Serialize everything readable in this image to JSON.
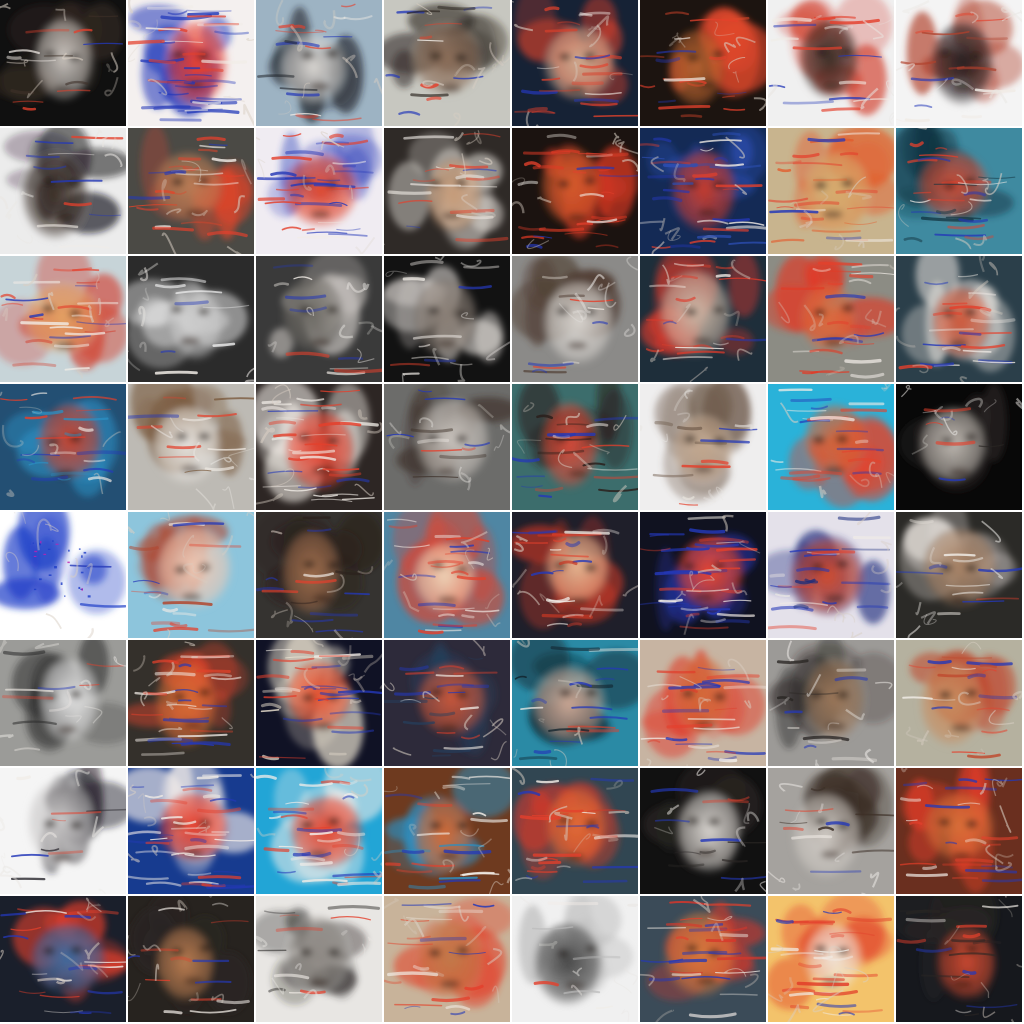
{
  "grid": {
    "rows": 8,
    "cols": 8,
    "tiles": [
      {
        "bg": "#101010",
        "face": "#c9c3bd",
        "hair": "#3b2e26",
        "tone": "warm",
        "noise": 0.35
      },
      {
        "bg": "#f4f0ef",
        "face": "#e74032",
        "hair": "#1d35b8",
        "tone": "noise",
        "noise": 0.95
      },
      {
        "bg": "#9db3c3",
        "face": "#d9d6d2",
        "hair": "#1f2228",
        "tone": "cool",
        "noise": 0.45
      },
      {
        "bg": "#c7c7c0",
        "face": "#8a6c57",
        "hair": "#2b241f",
        "tone": "warm",
        "noise": 0.35
      },
      {
        "bg": "#162235",
        "face": "#cfa98e",
        "hair": "#d6402c",
        "tone": "cool",
        "noise": 0.55
      },
      {
        "bg": "#1c1410",
        "face": "#b7622f",
        "hair": "#e1482b",
        "tone": "warm",
        "noise": 0.5
      },
      {
        "bg": "#f0f0f0",
        "face": "#3b2d28",
        "hair": "#d23c2a",
        "tone": "light",
        "noise": 0.4
      },
      {
        "bg": "#f4f4f4",
        "face": "#262023",
        "hair": "#b0402b",
        "tone": "light",
        "noise": 0.4
      },
      {
        "bg": "#ececec",
        "face": "#3b2f28",
        "hair": "#17131a",
        "tone": "light",
        "noise": 0.25
      },
      {
        "bg": "#4b4a45",
        "face": "#b77c55",
        "hair": "#e2452a",
        "tone": "warm",
        "noise": 0.6
      },
      {
        "bg": "#f0ecf2",
        "face": "#e0482f",
        "hair": "#2a3cb8",
        "tone": "noise",
        "noise": 0.8
      },
      {
        "bg": "#2f2a27",
        "face": "#c69b78",
        "hair": "#e7e2dc",
        "tone": "warm",
        "noise": 0.45
      },
      {
        "bg": "#1b1310",
        "face": "#d45a2c",
        "hair": "#e03a25",
        "tone": "warm",
        "noise": 0.7
      },
      {
        "bg": "#142a55",
        "face": "#c33a2b",
        "hair": "#2d4fb6",
        "tone": "noise",
        "noise": 0.85
      },
      {
        "bg": "#c8b48e",
        "face": "#d6ab6d",
        "hair": "#e35b2c",
        "tone": "warm",
        "noise": 0.6
      },
      {
        "bg": "#3f8aa0",
        "face": "#c94a35",
        "hair": "#12333f",
        "tone": "cool",
        "noise": 0.6
      },
      {
        "bg": "#c7d4d8",
        "face": "#e3a163",
        "hair": "#d33d2c",
        "tone": "warm",
        "noise": 0.6
      },
      {
        "bg": "#2b2b2b",
        "face": "#c9c9c9",
        "hair": "#f0f0f0",
        "tone": "gray",
        "noise": 0.2
      },
      {
        "bg": "#3a3a3a",
        "face": "#6d6a64",
        "hair": "#cfcac5",
        "tone": "gray",
        "noise": 0.25
      },
      {
        "bg": "#121212",
        "face": "#8a7f76",
        "hair": "#e6e1dc",
        "tone": "gray",
        "noise": 0.3
      },
      {
        "bg": "#8b8a88",
        "face": "#d8d4cf",
        "hair": "#4d3a2f",
        "tone": "gray",
        "noise": 0.25
      },
      {
        "bg": "#1e2e3a",
        "face": "#cbb7a6",
        "hair": "#e0392a",
        "tone": "cool",
        "noise": 0.5
      },
      {
        "bg": "#8c8c84",
        "face": "#db6a3d",
        "hair": "#e13a26",
        "tone": "warm",
        "noise": 0.6
      },
      {
        "bg": "#2b3f4a",
        "face": "#cf5a3c",
        "hair": "#e6e1dc",
        "tone": "cool",
        "noise": 0.5
      },
      {
        "bg": "#234f73",
        "face": "#c6432f",
        "hair": "#2b8fc2",
        "tone": "cool",
        "noise": 0.55
      },
      {
        "bg": "#bdbab4",
        "face": "#e6e2dd",
        "hair": "#7a5a3d",
        "tone": "gray",
        "noise": 0.3
      },
      {
        "bg": "#2d2624",
        "face": "#e3412e",
        "hair": "#f0ebe5",
        "tone": "noise",
        "noise": 0.85
      },
      {
        "bg": "#6c6c6a",
        "face": "#c9c3bd",
        "hair": "#3b2e26",
        "tone": "gray",
        "noise": 0.25
      },
      {
        "bg": "#3c6d6c",
        "face": "#d34b3a",
        "hair": "#2a1e1a",
        "tone": "cool",
        "noise": 0.5
      },
      {
        "bg": "#efeeee",
        "face": "#c0a58c",
        "hair": "#6e5a4a",
        "tone": "light",
        "noise": 0.25
      },
      {
        "bg": "#2ab2d9",
        "face": "#d2643b",
        "hair": "#e2442d",
        "tone": "cool",
        "noise": 0.55
      },
      {
        "bg": "#080808",
        "face": "#bdb7b0",
        "hair": "#2a2624",
        "tone": "gray",
        "noise": 0.15
      },
      {
        "bg": "#ffffff",
        "face": "#ffffff",
        "hair": "#1c3cc7",
        "tone": "blank",
        "noise": 0.05
      },
      {
        "bg": "#8dc5dc",
        "face": "#eecab6",
        "hair": "#b1442b",
        "tone": "cool",
        "noise": 0.4
      },
      {
        "bg": "#353330",
        "face": "#9c6b4b",
        "hair": "#2a1e1a",
        "tone": "warm",
        "noise": 0.35
      },
      {
        "bg": "#4f86a3",
        "face": "#edd0b4",
        "hair": "#e1412b",
        "tone": "warm",
        "noise": 0.6
      },
      {
        "bg": "#1f1f2a",
        "face": "#e5b28e",
        "hair": "#c73724",
        "tone": "warm",
        "noise": 0.6
      },
      {
        "bg": "#101220",
        "face": "#e7452e",
        "hair": "#2638b5",
        "tone": "noise",
        "noise": 0.85
      },
      {
        "bg": "#e4e1ea",
        "face": "#cf4b30",
        "hair": "#1a2c7c",
        "tone": "cool",
        "noise": 0.55
      },
      {
        "bg": "#2b2a27",
        "face": "#a58063",
        "hair": "#e4dfd9",
        "tone": "gray",
        "noise": 0.3
      },
      {
        "bg": "#9b9b98",
        "face": "#e2e2e2",
        "hair": "#2b2b2b",
        "tone": "gray",
        "noise": 0.2
      },
      {
        "bg": "#34302b",
        "face": "#d76a35",
        "hair": "#e2432b",
        "tone": "warm",
        "noise": 0.7
      },
      {
        "bg": "#101225",
        "face": "#e5512f",
        "hair": "#f2e9d6",
        "tone": "noise",
        "noise": 0.75
      },
      {
        "bg": "#2d2a3a",
        "face": "#c7563a",
        "hair": "#24405f",
        "tone": "cool",
        "noise": 0.55
      },
      {
        "bg": "#2a8aa5",
        "face": "#caa693",
        "hair": "#11222c",
        "tone": "cool",
        "noise": 0.45
      },
      {
        "bg": "#c7b4a2",
        "face": "#d36939",
        "hair": "#e03b29",
        "tone": "warm",
        "noise": 0.6
      },
      {
        "bg": "#9c9a97",
        "face": "#9a7658",
        "hair": "#2a2624",
        "tone": "gray",
        "noise": 0.3
      },
      {
        "bg": "#b5b19f",
        "face": "#c78c5f",
        "hair": "#bf4a2f",
        "tone": "warm",
        "noise": 0.45
      },
      {
        "bg": "#f5f5f5",
        "face": "#c9c7c7",
        "hair": "#1d1b22",
        "tone": "light",
        "noise": 0.2
      },
      {
        "bg": "#173b8f",
        "face": "#e6402d",
        "hair": "#f3ede9",
        "tone": "noise",
        "noise": 0.95
      },
      {
        "bg": "#22a5d6",
        "face": "#e2452f",
        "hair": "#f3ede9",
        "tone": "noise",
        "noise": 0.75
      },
      {
        "bg": "#6e3a1f",
        "face": "#d36a36",
        "hair": "#2b8fc2",
        "tone": "warm",
        "noise": 0.55
      },
      {
        "bg": "#314652",
        "face": "#e06a35",
        "hair": "#d4392a",
        "tone": "warm",
        "noise": 0.6
      },
      {
        "bg": "#111111",
        "face": "#d6d2cd",
        "hair": "#2a2624",
        "tone": "gray",
        "noise": 0.3
      },
      {
        "bg": "#a5a29e",
        "face": "#cfcac4",
        "hair": "#3b2e26",
        "tone": "gray",
        "noise": 0.25
      },
      {
        "bg": "#6a2f1f",
        "face": "#d86e38",
        "hair": "#e13d28",
        "tone": "warm",
        "noise": 0.6
      },
      {
        "bg": "#1a1f2b",
        "face": "#3b6aa0",
        "hair": "#e23e2c",
        "tone": "cool",
        "noise": 0.5
      },
      {
        "bg": "#27231f",
        "face": "#b77a4f",
        "hair": "#2a2624",
        "tone": "warm",
        "noise": 0.35
      },
      {
        "bg": "#e8e6e3",
        "face": "#8f8a85",
        "hair": "#2c2a28",
        "tone": "gray",
        "noise": 0.25
      },
      {
        "bg": "#c8b39a",
        "face": "#c17a4a",
        "hair": "#e2432b",
        "tone": "warm",
        "noise": 0.5
      },
      {
        "bg": "#f0f0f0",
        "face": "#474747",
        "hair": "#b9b9b9",
        "tone": "gray",
        "noise": 0.15
      },
      {
        "bg": "#3b4b58",
        "face": "#d3783d",
        "hair": "#d8362a",
        "tone": "warm",
        "noise": 0.6
      },
      {
        "bg": "#f3c36b",
        "face": "#f0e4d6",
        "hair": "#e13d28",
        "tone": "warm",
        "noise": 0.7
      },
      {
        "bg": "#16181d",
        "face": "#c7472f",
        "hair": "#2a2624",
        "tone": "cool",
        "noise": 0.45
      }
    ]
  }
}
